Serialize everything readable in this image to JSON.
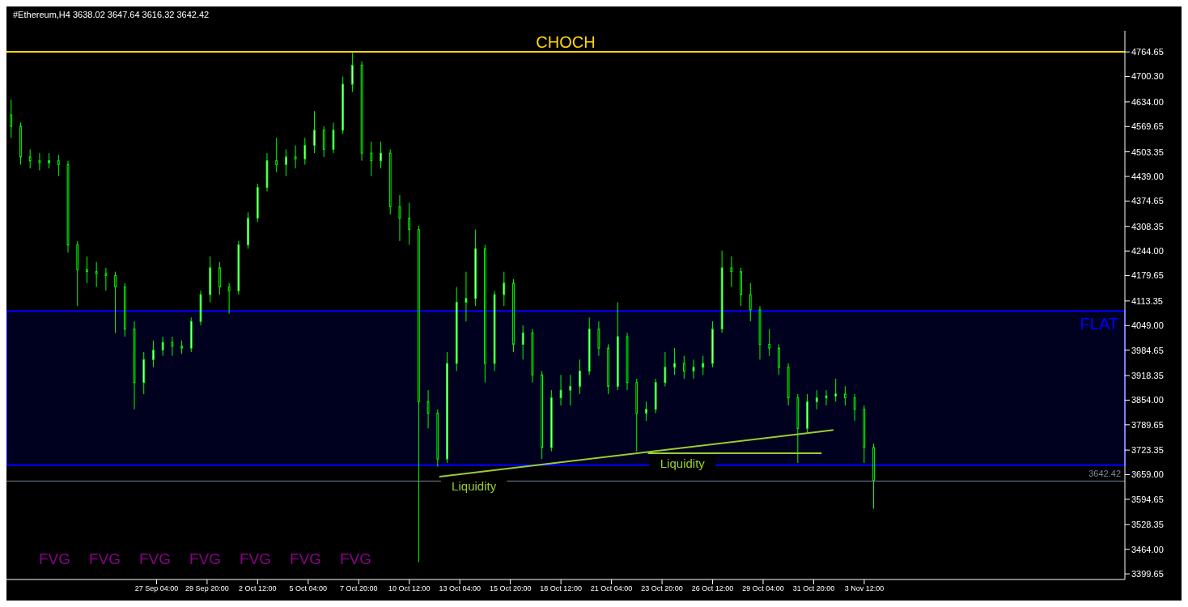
{
  "chart_data": {
    "type": "candlestick",
    "title": "#Ethereum,H4  3638.02 3647.64 3616.32 3642.42",
    "color": "#00ff00",
    "x": [
      "--09-19T12:00",
      "--09-20T00:00",
      "--09-20T12:00",
      "--09-21T00:00",
      "--09-21T12:00",
      "--09-22T00:00",
      "--09-22T12:00",
      "--09-23T00:00",
      "--09-23T12:00",
      "--09-24T00:00",
      "--09-24T12:00",
      "--09-25T00:00",
      "--09-25T12:00",
      "--09-26T00:00",
      "--09-26T12:00",
      "--09-27T00:00",
      "--09-27T12:00",
      "--09-28T00:00",
      "--09-28T12:00",
      "--09-29T00:00",
      "--09-29T12:00",
      "--09-30T00:00",
      "--09-30T12:00",
      "--10-01T00:00",
      "--10-01T12:00",
      "--10-02T00:00",
      "--10-02T12:00",
      "--10-03T00:00",
      "--10-03T12:00",
      "--10-04T00:00",
      "--10-04T12:00",
      "--10-05T00:00",
      "--10-05T12:00",
      "--10-06T00:00",
      "--10-06T12:00",
      "--10-07T00:00",
      "--10-07T12:00",
      "--10-08T00:00",
      "--10-08T12:00",
      "--10-09T00:00",
      "--10-09T12:00",
      "--10-10T00:00",
      "--10-10T12:00",
      "--10-11T00:00",
      "--10-11T12:00",
      "--10-12T00:00",
      "--10-12T12:00",
      "--10-13T00:00",
      "--10-13T12:00",
      "--10-14T00:00",
      "--10-14T12:00",
      "--10-15T00:00",
      "--10-15T12:00",
      "--10-16T00:00",
      "--10-16T12:00",
      "--10-17T00:00",
      "--10-17T12:00",
      "--10-18T00:00",
      "--10-18T12:00",
      "--10-19T00:00",
      "--10-19T12:00",
      "--10-20T00:00",
      "--10-20T12:00",
      "--10-21T00:00",
      "--10-21T12:00",
      "--10-22T00:00",
      "--10-22T12:00",
      "--10-23T00:00",
      "--10-23T12:00",
      "--10-24T00:00",
      "--10-24T12:00",
      "--10-25T00:00",
      "--10-25T12:00",
      "--10-26T00:00",
      "--10-26T12:00",
      "--10-27T00:00",
      "--10-27T12:00",
      "--10-28T00:00",
      "--10-28T12:00",
      "--10-29T00:00",
      "--10-29T12:00",
      "--10-30T00:00",
      "--10-30T12:00",
      "--10-31T00:00",
      "--10-31T12:00",
      "--11-01T00:00",
      "--11-01T12:00",
      "--11-02T00:00",
      "--11-02T12:00",
      "--11-03T00:00",
      "--11-03T12:00",
      "--11-04T00:00"
    ],
    "ohlc": [
      [
        4600,
        4640,
        4540,
        4570
      ],
      [
        4570,
        4580,
        4470,
        4490
      ],
      [
        4490,
        4510,
        4460,
        4480
      ],
      [
        4480,
        4500,
        4455,
        4475
      ],
      [
        4475,
        4500,
        4460,
        4480
      ],
      [
        4480,
        4495,
        4440,
        4470
      ],
      [
        4470,
        4480,
        4240,
        4260
      ],
      [
        4260,
        4270,
        4100,
        4195
      ],
      [
        4195,
        4230,
        4160,
        4190
      ],
      [
        4190,
        4215,
        4150,
        4185
      ],
      [
        4185,
        4200,
        4140,
        4180
      ],
      [
        4180,
        4190,
        4030,
        4150
      ],
      [
        4150,
        4160,
        4020,
        4040
      ],
      [
        4040,
        4060,
        3830,
        3900
      ],
      [
        3900,
        3980,
        3870,
        3960
      ],
      [
        3960,
        4010,
        3940,
        3985
      ],
      [
        3985,
        4020,
        3970,
        4005
      ],
      [
        4005,
        4020,
        3970,
        3995
      ],
      [
        3995,
        4010,
        3975,
        3990
      ],
      [
        3990,
        4070,
        3980,
        4060
      ],
      [
        4060,
        4140,
        4050,
        4130
      ],
      [
        4130,
        4230,
        4110,
        4200
      ],
      [
        4200,
        4215,
        4130,
        4150
      ],
      [
        4150,
        4160,
        4080,
        4140
      ],
      [
        4140,
        4270,
        4130,
        4260
      ],
      [
        4260,
        4345,
        4250,
        4330
      ],
      [
        4330,
        4420,
        4320,
        4410
      ],
      [
        4410,
        4500,
        4400,
        4480
      ],
      [
        4480,
        4540,
        4450,
        4470
      ],
      [
        4470,
        4510,
        4440,
        4490
      ],
      [
        4490,
        4520,
        4460,
        4485
      ],
      [
        4485,
        4540,
        4470,
        4520
      ],
      [
        4520,
        4610,
        4500,
        4560
      ],
      [
        4560,
        4570,
        4490,
        4510
      ],
      [
        4510,
        4580,
        4500,
        4560
      ],
      [
        4560,
        4700,
        4550,
        4680
      ],
      [
        4680,
        4762,
        4660,
        4730
      ],
      [
        4730,
        4740,
        4480,
        4500
      ],
      [
        4500,
        4530,
        4440,
        4480
      ],
      [
        4480,
        4530,
        4460,
        4500
      ],
      [
        4500,
        4510,
        4340,
        4360
      ],
      [
        4360,
        4390,
        4270,
        4330
      ],
      [
        4330,
        4370,
        4260,
        4300
      ],
      [
        4300,
        4310,
        3430,
        3850
      ],
      [
        3850,
        3880,
        3780,
        3820
      ],
      [
        3820,
        3830,
        3680,
        3700
      ],
      [
        3700,
        3980,
        3690,
        3950
      ],
      [
        3950,
        4150,
        3930,
        4110
      ],
      [
        4110,
        4190,
        4060,
        4120
      ],
      [
        4120,
        4300,
        4100,
        4250
      ],
      [
        4250,
        4260,
        3900,
        3950
      ],
      [
        3950,
        4140,
        3930,
        4130
      ],
      [
        4130,
        4190,
        4100,
        4160
      ],
      [
        4160,
        4170,
        3980,
        4000
      ],
      [
        4000,
        4050,
        3960,
        4030
      ],
      [
        4030,
        4040,
        3900,
        3920
      ],
      [
        3920,
        3930,
        3700,
        3730
      ],
      [
        3730,
        3880,
        3720,
        3860
      ],
      [
        3860,
        3920,
        3840,
        3880
      ],
      [
        3880,
        3920,
        3840,
        3890
      ],
      [
        3890,
        3960,
        3870,
        3930
      ],
      [
        3930,
        4070,
        3920,
        4040
      ],
      [
        4040,
        4060,
        3970,
        3990
      ],
      [
        3990,
        4000,
        3870,
        3890
      ],
      [
        3890,
        4110,
        3880,
        4020
      ],
      [
        4020,
        4030,
        3880,
        3900
      ],
      [
        3900,
        3910,
        3720,
        3820
      ],
      [
        3820,
        3850,
        3800,
        3830
      ],
      [
        3830,
        3910,
        3820,
        3900
      ],
      [
        3900,
        3980,
        3890,
        3940
      ],
      [
        3940,
        3990,
        3920,
        3950
      ],
      [
        3950,
        3970,
        3910,
        3930
      ],
      [
        3930,
        3960,
        3910,
        3940
      ],
      [
        3940,
        3970,
        3920,
        3950
      ],
      [
        3950,
        4060,
        3940,
        4040
      ],
      [
        4040,
        4245,
        4030,
        4200
      ],
      [
        4200,
        4230,
        4150,
        4190
      ],
      [
        4190,
        4200,
        4100,
        4130
      ],
      [
        4130,
        4160,
        4060,
        4090
      ],
      [
        4090,
        4100,
        3960,
        4000
      ],
      [
        4000,
        4040,
        3970,
        3990
      ],
      [
        3990,
        4000,
        3920,
        3940
      ],
      [
        3940,
        3950,
        3840,
        3860
      ],
      [
        3860,
        3870,
        3690,
        3780
      ],
      [
        3780,
        3870,
        3770,
        3850
      ],
      [
        3850,
        3880,
        3830,
        3860
      ],
      [
        3860,
        3880,
        3840,
        3865
      ],
      [
        3865,
        3910,
        3850,
        3870
      ],
      [
        3870,
        3890,
        3840,
        3860
      ],
      [
        3860,
        3870,
        3800,
        3830
      ],
      [
        3830,
        3840,
        3690,
        3730
      ],
      [
        3730,
        3740,
        3570,
        3642.42
      ]
    ],
    "series": [
      {
        "name": "Liquidity",
        "type": "line",
        "color": "#9acd32",
        "x": [
          "--10-12T02:00",
          "--11-01T21:00"
        ],
        "values": [
          3654,
          3776
        ]
      },
      {
        "name": "Liquidity",
        "type": "line",
        "color": "#9acd32",
        "x": [
          "--10-23T02:00",
          "--11-01T06:00"
        ],
        "values": [
          3715,
          3715
        ]
      }
    ],
    "xlim": [
      "--09-19T06:00",
      "--11-17T06:00"
    ],
    "xticks": [
      {
        "value": "--09-27T04:00",
        "label": "27 Sep 04:00"
      },
      {
        "value": "--09-29T20:00",
        "label": "29 Sep 20:00"
      },
      {
        "value": "--10-02T12:00",
        "label": "2 Oct 12:00"
      },
      {
        "value": "--10-05T04:00",
        "label": "5 Oct 04:00"
      },
      {
        "value": "--10-07T20:00",
        "label": "7 Oct 20:00"
      },
      {
        "value": "--10-10T12:00",
        "label": "10 Oct 12:00"
      },
      {
        "value": "--10-13T04:00",
        "label": "13 Oct 04:00"
      },
      {
        "value": "--10-15T20:00",
        "label": "15 Oct 20:00"
      },
      {
        "value": "--10-18T12:00",
        "label": "18 Oct 12:00"
      },
      {
        "value": "--10-21T04:00",
        "label": "21 Oct 04:00"
      },
      {
        "value": "--10-23T20:00",
        "label": "23 Oct 20:00"
      },
      {
        "value": "--10-26T12:00",
        "label": "26 Oct 12:00"
      },
      {
        "value": "--10-29T04:00",
        "label": "29 Oct 04:00"
      },
      {
        "value": "--10-31T20:00",
        "label": "31 Oct 20:00"
      },
      {
        "value": "--11-03T12:00",
        "label": "3 Nov 12:00"
      }
    ],
    "ylim": [
      3385,
      4820
    ],
    "yticks": [
      {
        "value": 3399.65,
        "label": "3399.65"
      },
      {
        "value": 3464,
        "label": "3464.00"
      },
      {
        "value": 3528.35,
        "label": "3528.35"
      },
      {
        "value": 3594.65,
        "label": "3594.65"
      },
      {
        "value": 3659,
        "label": "3659.00"
      },
      {
        "value": 3723.35,
        "label": "3723.35"
      },
      {
        "value": 3789.65,
        "label": "3789.65"
      },
      {
        "value": 3854,
        "label": "3854.00"
      },
      {
        "value": 3918.35,
        "label": "3918.35"
      },
      {
        "value": 3984.65,
        "label": "3984.65"
      },
      {
        "value": 4049,
        "label": "4049.00"
      },
      {
        "value": 4113.35,
        "label": "4113.35"
      },
      {
        "value": 4179.65,
        "label": "4179.65"
      },
      {
        "value": 4244,
        "label": "4244.00"
      },
      {
        "value": 4308.35,
        "label": "4308.35"
      },
      {
        "value": 4374.65,
        "label": "4374.65"
      },
      {
        "value": 4439,
        "label": "4439.00"
      },
      {
        "value": 4503.35,
        "label": "4503.35"
      },
      {
        "value": 4569.65,
        "label": "4569.65"
      },
      {
        "value": 4634,
        "label": "4634.00"
      },
      {
        "value": 4700.3,
        "label": "4700.30"
      },
      {
        "value": 4764.65,
        "label": "4764.65"
      }
    ],
    "ref_lines": [
      {
        "axis": "y",
        "value": 4765,
        "label": "CHOCH",
        "color": "#ffd700"
      },
      {
        "axis": "y",
        "value": 3642.42,
        "label": "3642.42",
        "color": "#778899"
      }
    ],
    "bands": [
      {
        "axis": "y",
        "from": 3684,
        "to": 4087,
        "label": "FLAT",
        "color": "#0000ff"
      }
    ],
    "annotations": [
      "FVG",
      "FVG",
      "FVG",
      "FVG",
      "FVG",
      "FVG",
      "FVG"
    ]
  }
}
